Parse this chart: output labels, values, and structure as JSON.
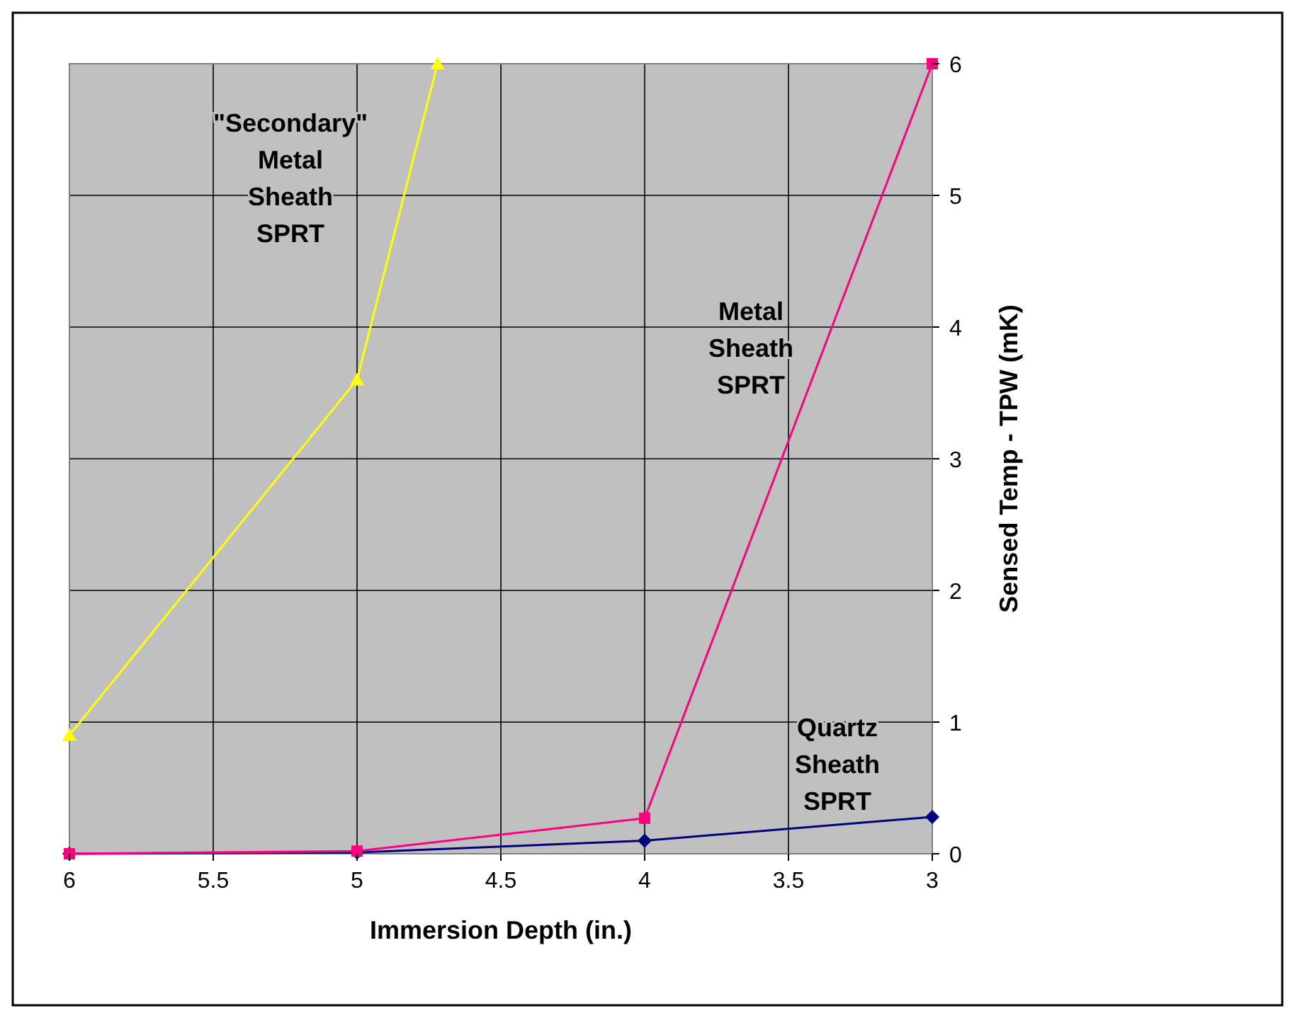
{
  "chart_data": {
    "type": "line",
    "xlabel": "Immersion Depth (in.)",
    "ylabel": "Sensed Temp - TPW (mK)",
    "xlim": [
      6,
      3
    ],
    "xticks": [
      6,
      5.5,
      5,
      4.5,
      4,
      3.5,
      3
    ],
    "ylim": [
      0,
      6
    ],
    "yticks": [
      0,
      1,
      2,
      3,
      4,
      5,
      6
    ],
    "grid": true,
    "series": [
      {
        "color": "#000080",
        "marker": "diamond",
        "x": [
          6,
          5,
          4,
          3
        ],
        "values": [
          0,
          0.01,
          0.1,
          0.28
        ]
      },
      {
        "color": "#ff0080",
        "marker": "square",
        "x": [
          6,
          5,
          4,
          3
        ],
        "values": [
          0,
          0.02,
          0.27,
          6
        ]
      },
      {
        "color": "#ffff00",
        "marker": "triangle",
        "x": [
          6,
          5,
          4.72
        ],
        "values": [
          0.9,
          3.6,
          6
        ]
      }
    ],
    "annotations": [
      "\"Secondary\"\nMetal\nSheath\nSPRT",
      "Metal\nSheath\nSPRT",
      "Quartz\nSheath\nSPRT"
    ]
  }
}
